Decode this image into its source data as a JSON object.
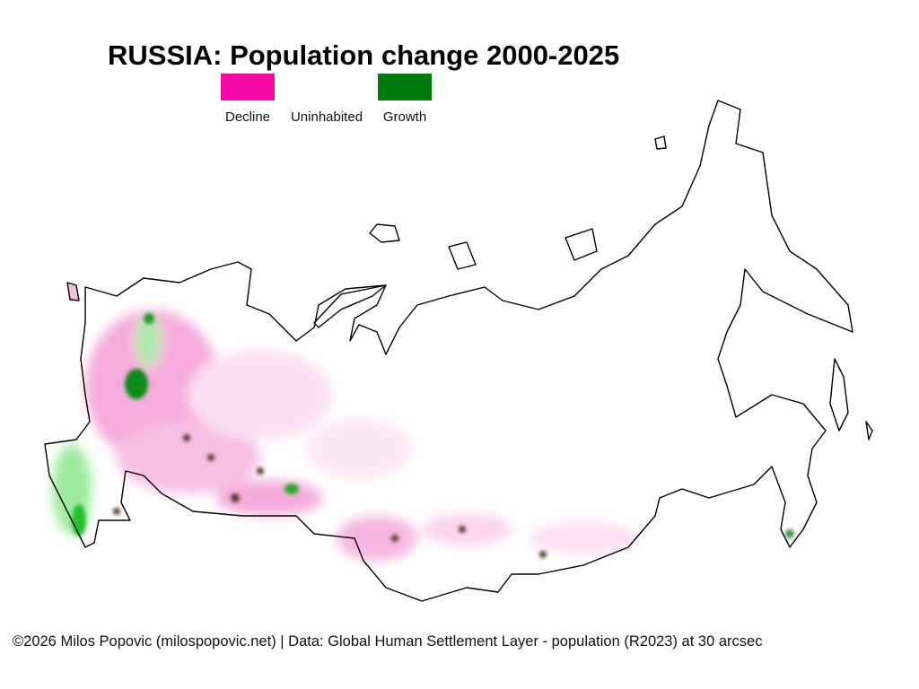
{
  "title": "RUSSIA: Population change 2000-2025",
  "legend": [
    {
      "label": "Decline",
      "color": "#f50aa5"
    },
    {
      "label": "Uninhabited",
      "color": "#ffffff"
    },
    {
      "label": "Growth",
      "color": "#007a0c"
    }
  ],
  "credit": "©2026 Milos Popovic (milospopovic.net) | Data: Global Human Settlement Layer - population (R2023) at 30 arcsec"
}
